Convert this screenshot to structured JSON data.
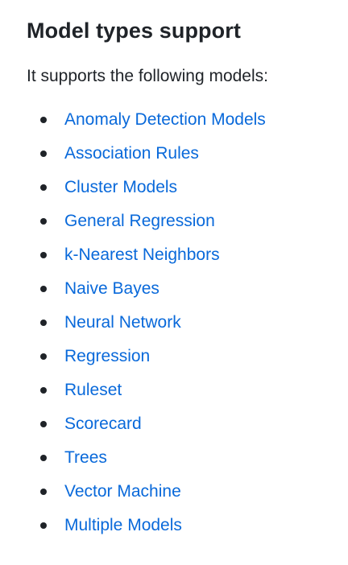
{
  "section": {
    "heading": "Model types support",
    "intro": "It supports the following models:"
  },
  "models": [
    "Anomaly Detection Models",
    "Association Rules",
    "Cluster Models",
    "General Regression",
    "k-Nearest Neighbors",
    "Naive Bayes",
    "Neural Network",
    "Regression",
    "Ruleset",
    "Scorecard",
    "Trees",
    "Vector Machine",
    "Multiple Models"
  ],
  "colors": {
    "link": "#0969da",
    "text": "#1f2328"
  }
}
